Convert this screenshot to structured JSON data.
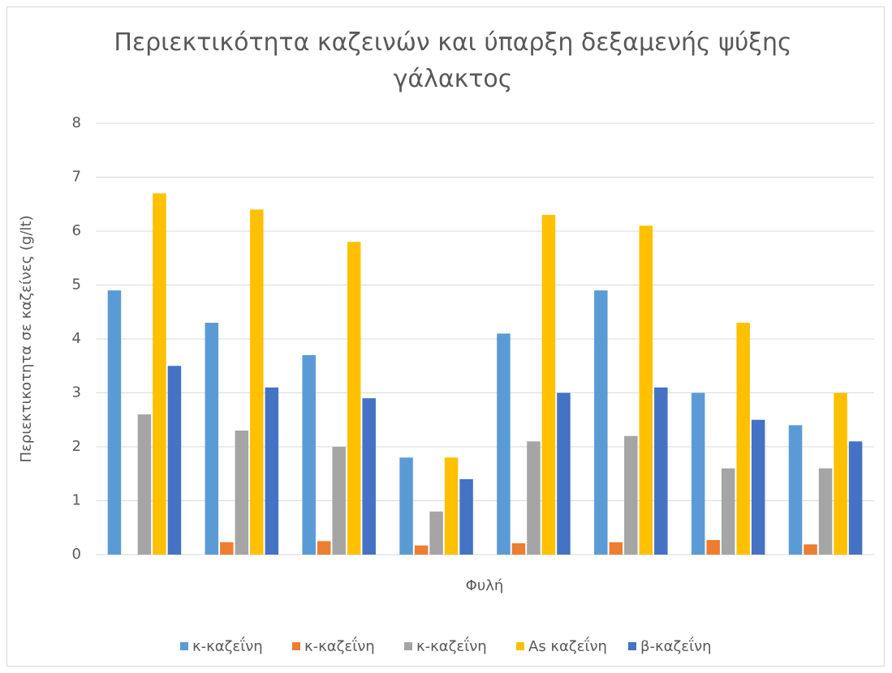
{
  "chart_data": {
    "type": "bar",
    "title": "Περιεκτικότητα καζεινών και ύπαρξη δεξαμενής ψύξης γάλακτος",
    "x_label": "Φυλή",
    "y_label": "Περιεκτικοτητα σε καζείνες (g/lt)",
    "categories": [
      null,
      null,
      null,
      null,
      null,
      null,
      null,
      null
    ],
    "series": [
      {
        "name": "κ-καζεΐνη",
        "color": "#5b9bd5",
        "values": [
          4.9,
          4.3,
          3.7,
          1.8,
          4.1,
          4.9,
          3.0,
          2.4
        ]
      },
      {
        "name": "κ-καζεΐνη",
        "color": "#ed7d31",
        "values": [
          null,
          0.23,
          0.25,
          0.17,
          0.21,
          0.23,
          0.27,
          0.19
        ]
      },
      {
        "name": "κ-καζεΐνη",
        "color": "#a5a5a5",
        "values": [
          2.6,
          2.3,
          2.0,
          0.8,
          2.1,
          2.2,
          1.6,
          1.6
        ]
      },
      {
        "name": "Αs καζεΐνη",
        "color": "#ffc000",
        "values": [
          6.7,
          6.4,
          5.8,
          1.8,
          6.3,
          6.1,
          4.3,
          3.0
        ]
      },
      {
        "name": "β-καζεΐνη",
        "color": "#4472c4",
        "values": [
          3.5,
          3.1,
          2.9,
          1.4,
          3.0,
          3.1,
          2.5,
          2.1
        ]
      }
    ],
    "ylim": [
      0,
      8
    ],
    "yticks": [
      0,
      1,
      2,
      3,
      4,
      5,
      6,
      7,
      8
    ],
    "grid": true
  }
}
